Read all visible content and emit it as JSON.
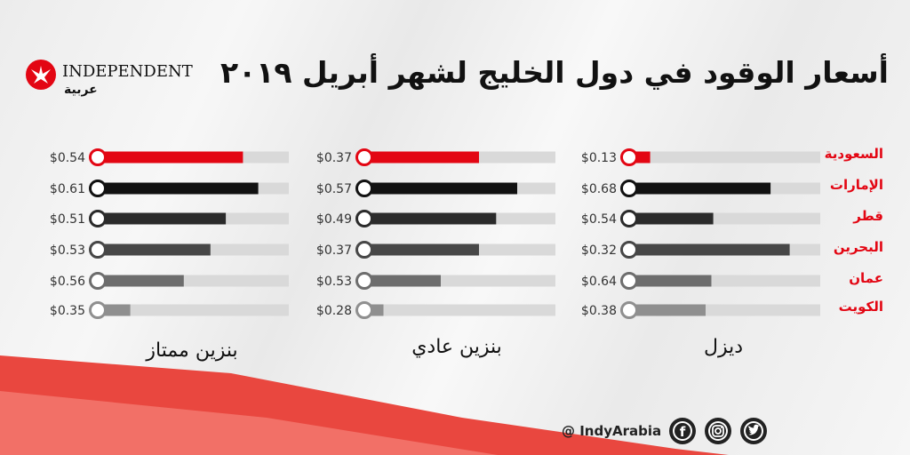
{
  "title": "أسعار الوقود في دول الخليج لشهر أبريل ٢٠١٩",
  "logo": {
    "wordmark": "INDEPENDENT",
    "arabic": "عربية"
  },
  "footer": {
    "handle": "@ IndyArabia"
  },
  "icons": [
    "facebook-icon",
    "instagram-icon",
    "twitter-icon"
  ],
  "colors": {
    "red": "#e30613",
    "black": "#111111",
    "dark": "#2b2b2b",
    "mid": "#474747",
    "gray": "#6d6d6d",
    "light": "#8f8f8f",
    "track": "#d9d9d9"
  },
  "countries": [
    "السعودية",
    "الإمارات",
    "قطر",
    "البحرين",
    "عمان",
    "الكويت"
  ],
  "chart_data": [
    {
      "type": "bar",
      "title": "ديزل",
      "categories": [
        "السعودية",
        "الإمارات",
        "قطر",
        "البحرين",
        "عمان",
        "الكويت"
      ],
      "values": [
        0.13,
        0.68,
        0.54,
        0.32,
        0.64,
        0.38
      ],
      "labels": [
        "$0.13",
        "$0.68",
        "$0.54",
        "$0.32",
        "$0.64",
        "$0.38"
      ],
      "fill_fraction": [
        0.11,
        0.74,
        0.44,
        0.84,
        0.43,
        0.4
      ]
    },
    {
      "type": "bar",
      "title": "بنزين عادي",
      "categories": [
        "السعودية",
        "الإمارات",
        "قطر",
        "البحرين",
        "عمان",
        "الكويت"
      ],
      "values": [
        0.37,
        0.57,
        0.49,
        0.37,
        0.53,
        0.28
      ],
      "labels": [
        "$0.37",
        "$0.57",
        "$0.49",
        "$0.37",
        "$0.53",
        "$0.28"
      ],
      "fill_fraction": [
        0.6,
        0.8,
        0.69,
        0.6,
        0.4,
        0.1
      ]
    },
    {
      "type": "bar",
      "title": "بنزين ممتاز",
      "categories": [
        "السعودية",
        "الإمارات",
        "قطر",
        "البحرين",
        "عمان",
        "الكويت"
      ],
      "values": [
        0.54,
        0.61,
        0.51,
        0.53,
        0.56,
        0.35
      ],
      "labels": [
        "$0.54",
        "$0.61",
        "$0.51",
        "$0.53",
        "$0.56",
        "$0.35"
      ],
      "fill_fraction": [
        0.76,
        0.84,
        0.67,
        0.59,
        0.45,
        0.17
      ]
    }
  ]
}
